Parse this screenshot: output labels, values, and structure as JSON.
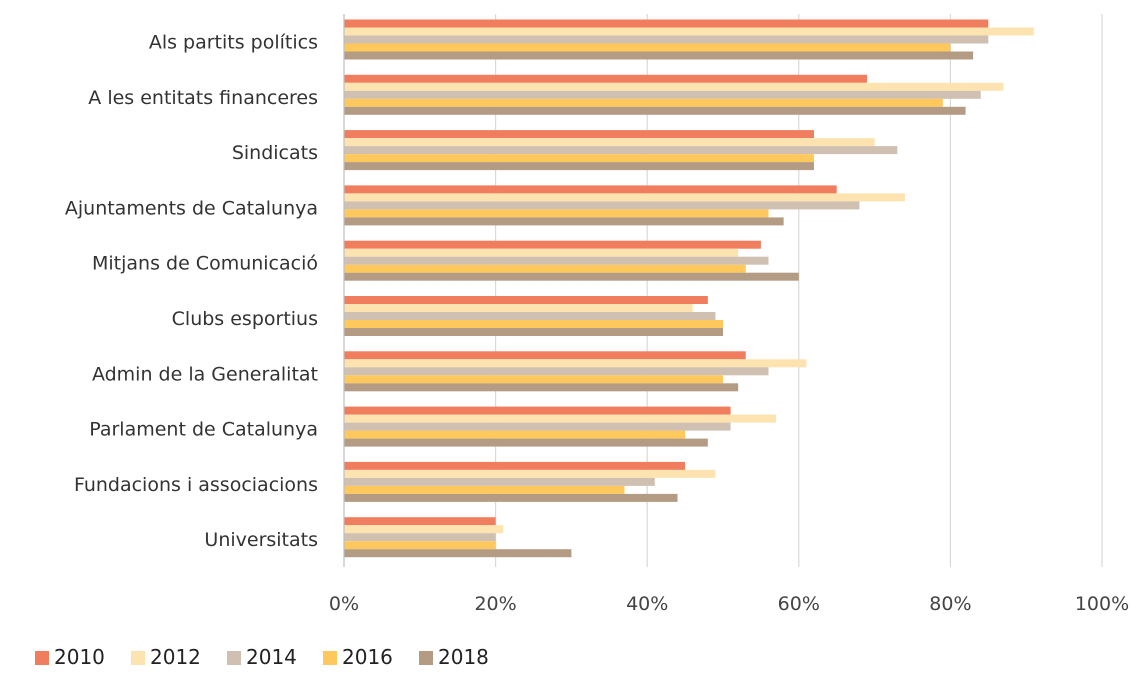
{
  "chart_data": {
    "type": "bar",
    "orientation": "horizontal",
    "categories": [
      "Als partits polítics",
      "A les entitats financeres",
      "Sindicats",
      "Ajuntaments de Catalunya",
      "Mitjans de Comunicació",
      "Clubs esportius",
      "Admin de la Generalitat",
      "Parlament de Catalunya",
      "Fundacions i associacions",
      "Universitats"
    ],
    "series": [
      {
        "name": "2010",
        "color": "#EF7D5E",
        "values": [
          85,
          69,
          62,
          65,
          55,
          48,
          53,
          51,
          45,
          20
        ]
      },
      {
        "name": "2012",
        "color": "#FDE3B0",
        "values": [
          91,
          87,
          70,
          74,
          52,
          46,
          61,
          57,
          49,
          21
        ]
      },
      {
        "name": "2014",
        "color": "#CFC0B1",
        "values": [
          85,
          84,
          73,
          68,
          56,
          49,
          56,
          51,
          41,
          20
        ]
      },
      {
        "name": "2016",
        "color": "#FFC85C",
        "values": [
          80,
          79,
          62,
          56,
          53,
          50,
          50,
          45,
          37,
          20
        ]
      },
      {
        "name": "2018",
        "color": "#B49C84",
        "values": [
          83,
          82,
          62,
          58,
          60,
          50,
          52,
          48,
          44,
          30
        ]
      }
    ],
    "x_ticks": [
      "0%",
      "20%",
      "40%",
      "60%",
      "80%",
      "100%"
    ],
    "xlim": [
      0,
      100
    ],
    "title": "",
    "xlabel": "",
    "ylabel": "",
    "grid": true,
    "legend_position": "bottom-left"
  }
}
